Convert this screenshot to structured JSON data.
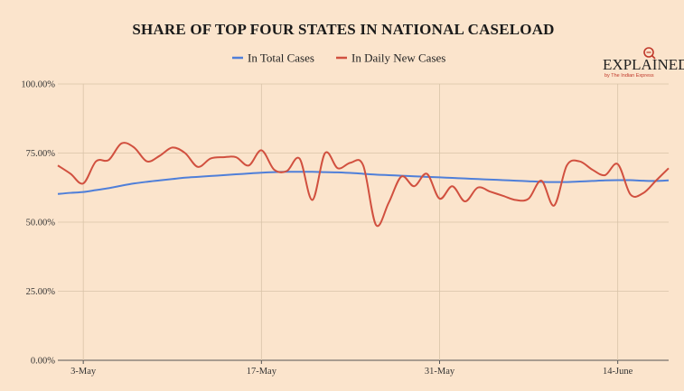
{
  "chart_data": {
    "type": "line",
    "title": "SHARE OF TOP FOUR STATES IN NATIONAL CASELOAD",
    "xlabel": "",
    "ylabel": "",
    "ylim": [
      0,
      100
    ],
    "y_ticks": [
      "0.00%",
      "25.00%",
      "50.00%",
      "75.00%",
      "100.00%"
    ],
    "x_ticks": [
      {
        "day": 3,
        "label": "3-May"
      },
      {
        "day": 17,
        "label": "17-May"
      },
      {
        "day": 31,
        "label": "31-May"
      },
      {
        "day": 45,
        "label": "14-June"
      }
    ],
    "x_range_days": [
      1,
      49
    ],
    "x_axis_origin": "May",
    "grid": true,
    "legend_position": "top",
    "series": [
      {
        "name": "In Total Cases",
        "color": "#4f7fd9",
        "points": [
          [
            1,
            60.2
          ],
          [
            2,
            60.6
          ],
          [
            3,
            60.9
          ],
          [
            4,
            61.6
          ],
          [
            5,
            62.3
          ],
          [
            6,
            63.2
          ],
          [
            7,
            64
          ],
          [
            8,
            64.6
          ],
          [
            9,
            65.1
          ],
          [
            10,
            65.6
          ],
          [
            11,
            66.1
          ],
          [
            12,
            66.4
          ],
          [
            13,
            66.7
          ],
          [
            14,
            67
          ],
          [
            15,
            67.3
          ],
          [
            16,
            67.6
          ],
          [
            17,
            67.9
          ],
          [
            18,
            68.1
          ],
          [
            19,
            68.2
          ],
          [
            20,
            68.2
          ],
          [
            21,
            68.2
          ],
          [
            22,
            68.1
          ],
          [
            23,
            68
          ],
          [
            24,
            67.8
          ],
          [
            25,
            67.5
          ],
          [
            26,
            67.2
          ],
          [
            27,
            67
          ],
          [
            28,
            66.8
          ],
          [
            29,
            66.6
          ],
          [
            30,
            66.4
          ],
          [
            31,
            66.2
          ],
          [
            32,
            66
          ],
          [
            33,
            65.8
          ],
          [
            34,
            65.6
          ],
          [
            35,
            65.4
          ],
          [
            36,
            65.2
          ],
          [
            37,
            65
          ],
          [
            38,
            64.8
          ],
          [
            39,
            64.6
          ],
          [
            40,
            64.5
          ],
          [
            41,
            64.5
          ],
          [
            42,
            64.7
          ],
          [
            43,
            64.9
          ],
          [
            44,
            65.1
          ],
          [
            45,
            65.2
          ],
          [
            46,
            65.2
          ],
          [
            47,
            65
          ],
          [
            48,
            64.9
          ],
          [
            49,
            65.1
          ]
        ]
      },
      {
        "name": "In Daily New Cases",
        "color": "#d1503f",
        "points": [
          [
            1,
            70.5
          ],
          [
            2,
            67.5
          ],
          [
            3,
            64
          ],
          [
            4,
            72
          ],
          [
            5,
            72.5
          ],
          [
            6,
            78.5
          ],
          [
            7,
            77
          ],
          [
            8,
            72
          ],
          [
            9,
            74
          ],
          [
            10,
            77
          ],
          [
            11,
            75
          ],
          [
            12,
            70
          ],
          [
            13,
            73
          ],
          [
            14,
            73.5
          ],
          [
            15,
            73.5
          ],
          [
            16,
            70.5
          ],
          [
            17,
            76
          ],
          [
            18,
            69
          ],
          [
            19,
            68.5
          ],
          [
            20,
            73
          ],
          [
            21,
            58
          ],
          [
            22,
            75
          ],
          [
            23,
            69.5
          ],
          [
            24,
            71.5
          ],
          [
            25,
            70.5
          ],
          [
            26,
            49
          ],
          [
            27,
            57
          ],
          [
            28,
            66.5
          ],
          [
            29,
            63
          ],
          [
            30,
            67.5
          ],
          [
            31,
            58.5
          ],
          [
            32,
            63
          ],
          [
            33,
            57.5
          ],
          [
            34,
            62.5
          ],
          [
            35,
            61
          ],
          [
            36,
            59.5
          ],
          [
            37,
            58
          ],
          [
            38,
            58.5
          ],
          [
            39,
            65
          ],
          [
            40,
            56
          ],
          [
            41,
            70.5
          ],
          [
            42,
            72
          ],
          [
            43,
            69
          ],
          [
            44,
            67
          ],
          [
            45,
            71
          ],
          [
            46,
            60
          ],
          [
            47,
            60.5
          ],
          [
            48,
            65
          ],
          [
            49,
            69.5
          ]
        ]
      }
    ]
  },
  "brand": {
    "main": "EXPLAINED",
    "sub": "by The Indian Express"
  }
}
